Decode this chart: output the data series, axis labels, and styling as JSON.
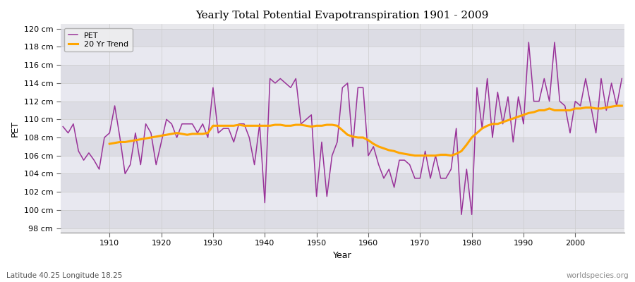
{
  "title": "Yearly Total Potential Evapotranspiration 1901 - 2009",
  "xlabel": "Year",
  "ylabel": "PET",
  "subtitle": "Latitude 40.25 Longitude 18.25",
  "watermark": "worldspecies.org",
  "pet_color": "#993399",
  "trend_color": "#FFA500",
  "bg_color": "#ffffff",
  "plot_bg_color": "#e8e8ec",
  "band_color1": "#dcdce4",
  "band_color2": "#e8e8f0",
  "ylim": [
    97.5,
    120.5
  ],
  "ytick_values": [
    98,
    100,
    102,
    104,
    106,
    108,
    110,
    112,
    114,
    116,
    118,
    120
  ],
  "ytick_labels": [
    "98 cm",
    "100 cm",
    "102 cm",
    "104 cm",
    "106 cm",
    "108 cm",
    "110 cm",
    "112 cm",
    "114 cm",
    "116 cm",
    "118 cm",
    "120 cm"
  ],
  "xlim": [
    1900.5,
    2009.5
  ],
  "xtick_values": [
    1910,
    1920,
    1930,
    1940,
    1950,
    1960,
    1970,
    1980,
    1990,
    2000
  ],
  "years": [
    1901,
    1902,
    1903,
    1904,
    1905,
    1906,
    1907,
    1908,
    1909,
    1910,
    1911,
    1912,
    1913,
    1914,
    1915,
    1916,
    1917,
    1918,
    1919,
    1920,
    1921,
    1922,
    1923,
    1924,
    1925,
    1926,
    1927,
    1928,
    1929,
    1930,
    1931,
    1932,
    1933,
    1934,
    1935,
    1936,
    1937,
    1938,
    1939,
    1940,
    1941,
    1942,
    1943,
    1944,
    1945,
    1946,
    1947,
    1948,
    1949,
    1950,
    1951,
    1952,
    1953,
    1954,
    1955,
    1956,
    1957,
    1958,
    1959,
    1960,
    1961,
    1962,
    1963,
    1964,
    1965,
    1966,
    1967,
    1968,
    1969,
    1970,
    1971,
    1972,
    1973,
    1974,
    1975,
    1976,
    1977,
    1978,
    1979,
    1980,
    1981,
    1982,
    1983,
    1984,
    1985,
    1986,
    1987,
    1988,
    1989,
    1990,
    1991,
    1992,
    1993,
    1994,
    1995,
    1996,
    1997,
    1998,
    1999,
    2000,
    2001,
    2002,
    2003,
    2004,
    2005,
    2006,
    2007,
    2008,
    2009
  ],
  "pet_values": [
    109.2,
    108.5,
    109.5,
    106.5,
    105.5,
    106.3,
    105.5,
    104.5,
    108.0,
    108.5,
    111.5,
    108.0,
    104.0,
    105.0,
    108.5,
    105.0,
    109.5,
    108.5,
    105.0,
    107.5,
    110.0,
    109.5,
    108.0,
    109.5,
    109.5,
    109.5,
    108.5,
    109.5,
    108.0,
    113.5,
    108.5,
    109.0,
    109.0,
    107.5,
    109.5,
    109.5,
    108.0,
    105.0,
    109.5,
    100.8,
    114.5,
    114.0,
    114.5,
    114.0,
    113.5,
    114.5,
    109.5,
    110.0,
    110.5,
    101.5,
    107.5,
    101.5,
    106.0,
    107.5,
    113.5,
    114.0,
    107.0,
    113.5,
    113.5,
    106.0,
    107.0,
    105.0,
    103.5,
    104.5,
    102.5,
    105.5,
    105.5,
    105.0,
    103.5,
    103.5,
    106.5,
    103.5,
    106.0,
    103.5,
    103.5,
    104.5,
    109.0,
    99.5,
    104.5,
    99.5,
    113.5,
    109.0,
    114.5,
    108.0,
    113.0,
    109.5,
    112.5,
    107.5,
    112.5,
    109.5,
    118.5,
    112.0,
    112.0,
    114.5,
    112.0,
    118.5,
    112.0,
    111.5,
    108.5,
    112.0,
    111.5,
    114.5,
    111.5,
    108.5,
    114.5,
    111.0,
    114.0,
    111.5,
    114.5
  ],
  "trend_years": [
    1910,
    1911,
    1912,
    1913,
    1914,
    1915,
    1916,
    1917,
    1918,
    1919,
    1920,
    1921,
    1922,
    1923,
    1924,
    1925,
    1926,
    1927,
    1928,
    1929,
    1930,
    1931,
    1932,
    1933,
    1934,
    1935,
    1936,
    1937,
    1938,
    1939,
    1940,
    1941,
    1942,
    1943,
    1944,
    1945,
    1946,
    1947,
    1948,
    1949,
    1950,
    1951,
    1952,
    1953,
    1954,
    1955,
    1956,
    1957,
    1958,
    1959,
    1960,
    1961,
    1962,
    1963,
    1964,
    1965,
    1966,
    1967,
    1968,
    1969,
    1970,
    1971,
    1972,
    1973,
    1974,
    1975,
    1976,
    1977,
    1978,
    1979,
    1980,
    1981,
    1982,
    1983,
    1984,
    1985,
    1986,
    1987,
    1988,
    1989,
    1990,
    1991,
    1992,
    1993,
    1994,
    1995,
    1996,
    1997,
    1998,
    1999,
    2000,
    2001,
    2002,
    2003,
    2004,
    2005,
    2006,
    2007,
    2008,
    2009
  ],
  "trend_values": [
    107.3,
    107.4,
    107.5,
    107.5,
    107.6,
    107.7,
    107.8,
    107.9,
    108.0,
    108.1,
    108.2,
    108.3,
    108.4,
    108.5,
    108.4,
    108.3,
    108.4,
    108.4,
    108.4,
    108.5,
    109.3,
    109.3,
    109.3,
    109.3,
    109.3,
    109.4,
    109.3,
    109.3,
    109.3,
    109.3,
    109.3,
    109.3,
    109.4,
    109.4,
    109.3,
    109.3,
    109.4,
    109.4,
    109.3,
    109.2,
    109.3,
    109.3,
    109.4,
    109.4,
    109.3,
    108.8,
    108.3,
    108.1,
    108.0,
    108.0,
    107.7,
    107.3,
    107.0,
    106.8,
    106.6,
    106.5,
    106.3,
    106.2,
    106.1,
    106.0,
    106.0,
    106.0,
    106.0,
    106.0,
    106.1,
    106.1,
    106.0,
    106.2,
    106.5,
    107.2,
    108.0,
    108.5,
    109.0,
    109.3,
    109.5,
    109.5,
    109.7,
    109.9,
    110.1,
    110.3,
    110.5,
    110.7,
    110.8,
    111.0,
    111.0,
    111.2,
    111.0,
    111.0,
    111.0,
    111.0,
    111.2,
    111.2,
    111.3,
    111.3,
    111.2,
    111.2,
    111.3,
    111.4,
    111.5,
    111.5
  ]
}
